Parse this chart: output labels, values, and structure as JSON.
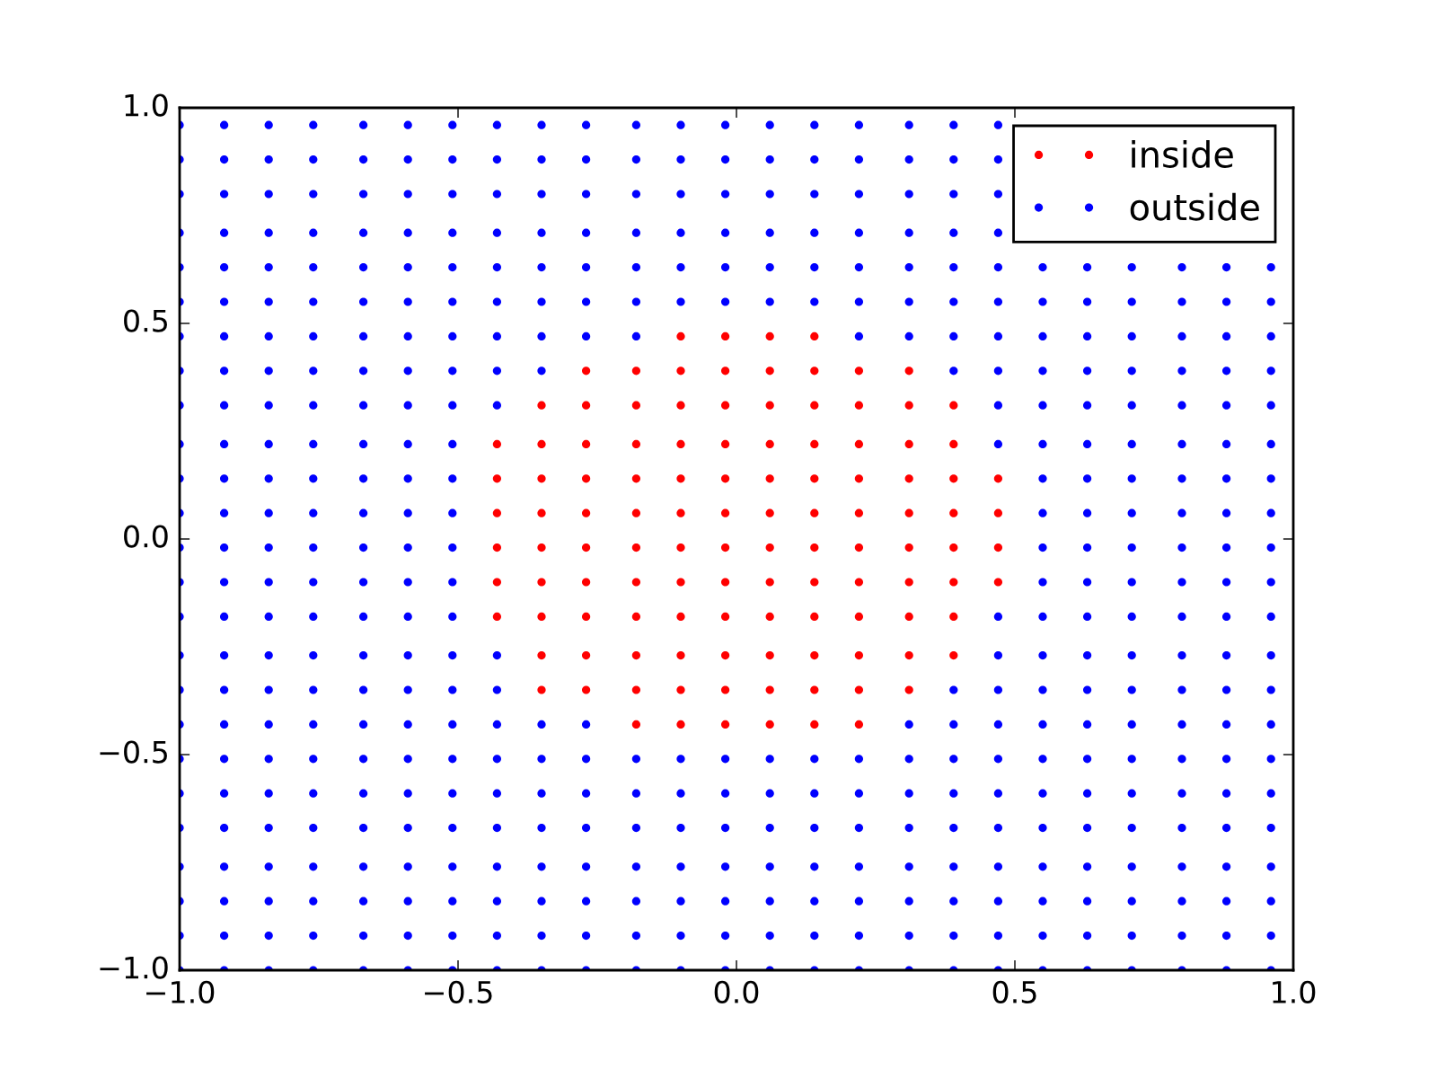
{
  "chart_data": {
    "type": "scatter",
    "xlim": [
      -1,
      1
    ],
    "ylim": [
      -1,
      1
    ],
    "xticks": [
      {
        "value": -1,
        "label": "−1.0"
      },
      {
        "value": -0.5,
        "label": "−0.5"
      },
      {
        "value": 0,
        "label": "0.0"
      },
      0.5,
      {
        "value": 1,
        "label": "1.0"
      }
    ],
    "yticks": [
      {
        "value": -1,
        "label": "−1.0"
      },
      {
        "value": -0.5,
        "label": "−0.5"
      },
      {
        "value": 0,
        "label": "0.0"
      },
      0.5,
      {
        "value": 1,
        "label": "1.0"
      }
    ],
    "legend": "top right",
    "marker": "circle",
    "series": [
      {
        "name": "inside",
        "color": "#ff0000",
        "x": [
          -0.18,
          -0.1,
          -0.02,
          0.06,
          0.14,
          0.22,
          -0.35,
          -0.27,
          -0.18,
          -0.1,
          -0.02,
          0.06,
          0.14,
          0.22,
          0.31,
          -0.35,
          -0.27,
          -0.18,
          -0.1,
          -0.02,
          0.06,
          0.14,
          0.22,
          0.31,
          0.39,
          -0.43,
          -0.35,
          -0.27,
          -0.18,
          -0.1,
          -0.02,
          0.06,
          0.14,
          0.22,
          0.31,
          0.39,
          -0.43,
          -0.35,
          -0.27,
          -0.18,
          -0.1,
          -0.02,
          0.06,
          0.14,
          0.22,
          0.31,
          0.39,
          0.47,
          -0.43,
          -0.35,
          -0.27,
          -0.18,
          -0.1,
          -0.02,
          0.06,
          0.14,
          0.22,
          0.31,
          0.39,
          0.47,
          -0.43,
          -0.35,
          -0.27,
          -0.18,
          -0.1,
          -0.02,
          0.06,
          0.14,
          0.22,
          0.31,
          0.39,
          0.47,
          -0.43,
          -0.35,
          -0.27,
          -0.18,
          -0.1,
          -0.02,
          0.06,
          0.14,
          0.22,
          0.31,
          0.39,
          0.47,
          -0.43,
          -0.35,
          -0.27,
          -0.18,
          -0.1,
          -0.02,
          0.06,
          0.14,
          0.22,
          0.31,
          0.39,
          -0.35,
          -0.27,
          -0.18,
          -0.1,
          -0.02,
          0.06,
          0.14,
          0.22,
          0.31,
          0.39,
          -0.27,
          -0.18,
          -0.1,
          -0.02,
          0.06,
          0.14,
          0.22,
          0.31,
          -0.1,
          -0.02,
          0.06,
          0.14
        ],
        "values": [
          -0.43,
          -0.43,
          -0.43,
          -0.43,
          -0.43,
          -0.43,
          -0.35,
          -0.35,
          -0.35,
          -0.35,
          -0.35,
          -0.35,
          -0.35,
          -0.35,
          -0.35,
          -0.27,
          -0.27,
          -0.27,
          -0.27,
          -0.27,
          -0.27,
          -0.27,
          -0.27,
          -0.27,
          -0.27,
          -0.18,
          -0.18,
          -0.18,
          -0.18,
          -0.18,
          -0.18,
          -0.18,
          -0.18,
          -0.18,
          -0.18,
          -0.18,
          -0.1,
          -0.1,
          -0.1,
          -0.1,
          -0.1,
          -0.1,
          -0.1,
          -0.1,
          -0.1,
          -0.1,
          -0.1,
          -0.1,
          -0.02,
          -0.02,
          -0.02,
          -0.02,
          -0.02,
          -0.02,
          -0.02,
          -0.02,
          -0.02,
          -0.02,
          -0.02,
          -0.02,
          0.06,
          0.06,
          0.06,
          0.06,
          0.06,
          0.06,
          0.06,
          0.06,
          0.06,
          0.06,
          0.06,
          0.06,
          0.14,
          0.14,
          0.14,
          0.14,
          0.14,
          0.14,
          0.14,
          0.14,
          0.14,
          0.14,
          0.14,
          0.14,
          0.22,
          0.22,
          0.22,
          0.22,
          0.22,
          0.22,
          0.22,
          0.22,
          0.22,
          0.22,
          0.22,
          0.31,
          0.31,
          0.31,
          0.31,
          0.31,
          0.31,
          0.31,
          0.31,
          0.31,
          0.31,
          0.39,
          0.39,
          0.39,
          0.39,
          0.39,
          0.39,
          0.39,
          0.39,
          0.47,
          0.47,
          0.47,
          0.47
        ]
      },
      {
        "name": "outside",
        "color": "#0000ff",
        "x": [
          -1,
          -0.92,
          -0.84,
          -0.76,
          -0.67,
          -0.59,
          -0.51,
          -0.43,
          -0.35,
          -0.27,
          -0.18,
          -0.1,
          -0.02,
          0.06,
          0.14,
          0.22,
          0.31,
          0.39,
          0.47,
          0.55,
          0.63,
          0.71,
          0.8,
          0.88,
          0.96,
          -1,
          -0.92,
          -0.84,
          -0.76,
          -0.67,
          -0.59,
          -0.51,
          -0.43,
          -0.35,
          -0.27,
          -0.18,
          -0.1,
          -0.02,
          0.06,
          0.14,
          0.22,
          0.31,
          0.39,
          0.47,
          0.55,
          0.63,
          0.71,
          0.8,
          0.88,
          0.96,
          -1,
          -0.92,
          -0.84,
          -0.76,
          -0.67,
          -0.59,
          -0.51,
          -0.43,
          -0.35,
          -0.27,
          -0.18,
          -0.1,
          -0.02,
          0.06,
          0.14,
          0.22,
          0.31,
          0.39,
          0.47,
          0.55,
          0.63,
          0.71,
          0.8,
          0.88,
          0.96,
          -1,
          -0.92,
          -0.84,
          -0.76,
          -0.67,
          -0.59,
          -0.51,
          -0.43,
          -0.35,
          -0.27,
          -0.18,
          -0.1,
          -0.02,
          0.06,
          0.14,
          0.22,
          0.31,
          0.39,
          0.47,
          0.55,
          0.63,
          0.71,
          0.8,
          0.88,
          0.96,
          -1,
          -0.92,
          -0.84,
          -0.76,
          -0.67,
          -0.59,
          -0.51,
          -0.43,
          -0.35,
          -0.27,
          -0.18,
          -0.1,
          -0.02,
          0.06,
          0.14,
          0.22,
          0.31,
          0.39,
          0.47,
          0.55,
          0.63,
          0.71,
          0.8,
          0.88,
          0.96,
          -1,
          -0.92,
          -0.84,
          -0.76,
          -0.67,
          -0.59,
          -0.51,
          -0.43,
          -0.35,
          -0.27,
          -0.18,
          -0.1,
          -0.02,
          0.06,
          0.14,
          0.22,
          0.31,
          0.39,
          0.47,
          0.55,
          0.63,
          0.71,
          0.8,
          0.88,
          0.96,
          -1,
          -0.92,
          -0.84,
          -0.76,
          -0.67,
          -0.59,
          -0.51,
          -0.43,
          -0.35,
          -0.27,
          -0.18,
          -0.1,
          -0.02,
          0.06,
          0.14,
          0.22,
          0.31,
          0.39,
          0.47,
          0.55,
          0.63,
          0.71,
          0.8,
          0.88,
          0.96,
          -1,
          -0.92,
          -0.84,
          -0.76,
          -0.67,
          -0.59,
          -0.51,
          -0.43,
          -0.35,
          -0.27,
          0.31,
          0.39,
          0.47,
          0.55,
          0.63,
          0.71,
          0.8,
          0.88,
          0.96,
          -1,
          -0.92,
          -0.84,
          -0.76,
          -0.67,
          -0.59,
          -0.51,
          -0.43,
          0.39,
          0.47,
          0.55,
          0.63,
          0.71,
          0.8,
          0.88,
          0.96,
          -1,
          -0.92,
          -0.84,
          -0.76,
          -0.67,
          -0.59,
          -0.51,
          -0.43,
          0.47,
          0.55,
          0.63,
          0.71,
          0.8,
          0.88,
          0.96,
          -1,
          -0.92,
          -0.84,
          -0.76,
          -0.67,
          -0.59,
          -0.51,
          0.47,
          0.55,
          0.63,
          0.71,
          0.8,
          0.88,
          0.96,
          -1,
          -0.92,
          -0.84,
          -0.76,
          -0.67,
          -0.59,
          -0.51,
          0.55,
          0.63,
          0.71,
          0.8,
          0.88,
          0.96,
          -1,
          -0.92,
          -0.84,
          -0.76,
          -0.67,
          -0.59,
          -0.51,
          0.55,
          0.63,
          0.71,
          0.8,
          0.88,
          0.96,
          -1,
          -0.92,
          -0.84,
          -0.76,
          -0.67,
          -0.59,
          -0.51,
          0.55,
          0.63,
          0.71,
          0.8,
          0.88,
          0.96,
          -1,
          -0.92,
          -0.84,
          -0.76,
          -0.67,
          -0.59,
          -0.51,
          0.55,
          0.63,
          0.71,
          0.8,
          0.88,
          0.96,
          -1,
          -0.92,
          -0.84,
          -0.76,
          -0.67,
          -0.59,
          -0.51,
          0.47,
          0.55,
          0.63,
          0.71,
          0.8,
          0.88,
          0.96,
          -1,
          -0.92,
          -0.84,
          -0.76,
          -0.67,
          -0.59,
          -0.51,
          -0.43,
          0.47,
          0.55,
          0.63,
          0.71,
          0.8,
          0.88,
          0.96,
          -1,
          -0.92,
          -0.84,
          -0.76,
          -0.67,
          -0.59,
          -0.51,
          -0.43,
          -0.35,
          0.39,
          0.47,
          0.55,
          0.63,
          0.71,
          0.8,
          0.88,
          0.96,
          -1,
          -0.92,
          -0.84,
          -0.76,
          -0.67,
          -0.59,
          -0.51,
          -0.43,
          -0.35,
          -0.27,
          -0.18,
          0.22,
          0.31,
          0.39,
          0.47,
          0.55,
          0.63,
          0.71,
          0.8,
          0.88,
          0.96,
          -1,
          -0.92,
          -0.84,
          -0.76,
          -0.67,
          -0.59,
          -0.51,
          -0.43,
          -0.35,
          -0.27,
          -0.18,
          -0.1,
          -0.02,
          0.06,
          0.14,
          0.22,
          0.31,
          0.39,
          0.47,
          0.55,
          0.63,
          0.71,
          0.8,
          0.88,
          0.96,
          -1,
          -0.92,
          -0.84,
          -0.76,
          -0.67,
          -0.59,
          -0.51,
          -0.43,
          -0.35,
          -0.27,
          -0.18,
          -0.1,
          -0.02,
          0.06,
          0.14,
          0.22,
          0.31,
          0.39,
          0.47,
          0.55,
          0.63,
          0.71,
          0.8,
          0.88,
          0.96,
          -1,
          -0.92,
          -0.84,
          -0.76,
          -0.67,
          -0.59,
          -0.51,
          -0.43,
          -0.35,
          -0.27,
          -0.18,
          -0.1,
          -0.02,
          0.06,
          0.14,
          0.22,
          0.31,
          0.39,
          0.47,
          -1,
          -0.92,
          -0.84,
          -0.76,
          -0.67,
          -0.59,
          -0.51,
          -0.43,
          -0.35,
          -0.27,
          -0.18,
          -0.1,
          -0.02,
          0.06,
          0.14,
          0.22,
          0.31,
          0.39,
          0.47,
          -1,
          -0.92,
          -0.84,
          -0.76,
          -0.67,
          -0.59,
          -0.51,
          -0.43,
          -0.35,
          -0.27,
          -0.18,
          -0.1,
          -0.02,
          0.06,
          0.14,
          0.22,
          0.31,
          0.39,
          0.47,
          -1,
          -0.92,
          -0.84,
          -0.76,
          -0.67,
          -0.59,
          -0.51,
          -0.43,
          -0.35,
          -0.27,
          -0.18,
          -0.1,
          -0.02,
          0.06,
          0.14,
          0.22,
          0.31,
          0.39,
          0.47
        ],
        "values": [
          -1,
          -1,
          -1,
          -1,
          -1,
          -1,
          -1,
          -1,
          -1,
          -1,
          -1,
          -1,
          -1,
          -1,
          -1,
          -1,
          -1,
          -1,
          -1,
          -1,
          -1,
          -1,
          -1,
          -1,
          -1,
          -0.92,
          -0.92,
          -0.92,
          -0.92,
          -0.92,
          -0.92,
          -0.92,
          -0.92,
          -0.92,
          -0.92,
          -0.92,
          -0.92,
          -0.92,
          -0.92,
          -0.92,
          -0.92,
          -0.92,
          -0.92,
          -0.92,
          -0.92,
          -0.92,
          -0.92,
          -0.92,
          -0.92,
          -0.92,
          -0.84,
          -0.84,
          -0.84,
          -0.84,
          -0.84,
          -0.84,
          -0.84,
          -0.84,
          -0.84,
          -0.84,
          -0.84,
          -0.84,
          -0.84,
          -0.84,
          -0.84,
          -0.84,
          -0.84,
          -0.84,
          -0.84,
          -0.84,
          -0.84,
          -0.84,
          -0.84,
          -0.84,
          -0.84,
          -0.76,
          -0.76,
          -0.76,
          -0.76,
          -0.76,
          -0.76,
          -0.76,
          -0.76,
          -0.76,
          -0.76,
          -0.76,
          -0.76,
          -0.76,
          -0.76,
          -0.76,
          -0.76,
          -0.76,
          -0.76,
          -0.76,
          -0.76,
          -0.76,
          -0.76,
          -0.76,
          -0.76,
          -0.76,
          -0.67,
          -0.67,
          -0.67,
          -0.67,
          -0.67,
          -0.67,
          -0.67,
          -0.67,
          -0.67,
          -0.67,
          -0.67,
          -0.67,
          -0.67,
          -0.67,
          -0.67,
          -0.67,
          -0.67,
          -0.67,
          -0.67,
          -0.67,
          -0.67,
          -0.67,
          -0.67,
          -0.67,
          -0.67,
          -0.59,
          -0.59,
          -0.59,
          -0.59,
          -0.59,
          -0.59,
          -0.59,
          -0.59,
          -0.59,
          -0.59,
          -0.59,
          -0.59,
          -0.59,
          -0.59,
          -0.59,
          -0.59,
          -0.59,
          -0.59,
          -0.59,
          -0.59,
          -0.59,
          -0.59,
          -0.59,
          -0.59,
          -0.59,
          -0.51,
          -0.51,
          -0.51,
          -0.51,
          -0.51,
          -0.51,
          -0.51,
          -0.51,
          -0.51,
          -0.51,
          -0.51,
          -0.51,
          -0.51,
          -0.51,
          -0.51,
          -0.51,
          -0.51,
          -0.51,
          -0.51,
          -0.51,
          -0.51,
          -0.51,
          -0.51,
          -0.51,
          -0.51,
          -0.43,
          -0.43,
          -0.43,
          -0.43,
          -0.43,
          -0.43,
          -0.43,
          -0.43,
          -0.43,
          -0.43,
          -0.43,
          -0.43,
          -0.43,
          -0.43,
          -0.43,
          -0.43,
          -0.43,
          -0.43,
          -0.43,
          -0.35,
          -0.35,
          -0.35,
          -0.35,
          -0.35,
          -0.35,
          -0.35,
          -0.35,
          -0.35,
          -0.35,
          -0.35,
          -0.35,
          -0.35,
          -0.35,
          -0.35,
          -0.35,
          -0.27,
          -0.27,
          -0.27,
          -0.27,
          -0.27,
          -0.27,
          -0.27,
          -0.27,
          -0.27,
          -0.27,
          -0.27,
          -0.27,
          -0.27,
          -0.27,
          -0.27,
          -0.18,
          -0.18,
          -0.18,
          -0.18,
          -0.18,
          -0.18,
          -0.18,
          -0.18,
          -0.18,
          -0.18,
          -0.18,
          -0.18,
          -0.18,
          -0.18,
          -0.1,
          -0.1,
          -0.1,
          -0.1,
          -0.1,
          -0.1,
          -0.1,
          -0.1,
          -0.1,
          -0.1,
          -0.1,
          -0.1,
          -0.1,
          -0.02,
          -0.02,
          -0.02,
          -0.02,
          -0.02,
          -0.02,
          -0.02,
          -0.02,
          -0.02,
          -0.02,
          -0.02,
          -0.02,
          -0.02,
          0.06,
          0.06,
          0.06,
          0.06,
          0.06,
          0.06,
          0.06,
          0.06,
          0.06,
          0.06,
          0.06,
          0.06,
          0.06,
          0.14,
          0.14,
          0.14,
          0.14,
          0.14,
          0.14,
          0.14,
          0.14,
          0.14,
          0.14,
          0.14,
          0.14,
          0.14,
          0.22,
          0.22,
          0.22,
          0.22,
          0.22,
          0.22,
          0.22,
          0.22,
          0.22,
          0.22,
          0.22,
          0.22,
          0.22,
          0.22,
          0.31,
          0.31,
          0.31,
          0.31,
          0.31,
          0.31,
          0.31,
          0.31,
          0.31,
          0.31,
          0.31,
          0.31,
          0.31,
          0.31,
          0.31,
          0.39,
          0.39,
          0.39,
          0.39,
          0.39,
          0.39,
          0.39,
          0.39,
          0.39,
          0.39,
          0.39,
          0.39,
          0.39,
          0.39,
          0.39,
          0.39,
          0.39,
          0.47,
          0.47,
          0.47,
          0.47,
          0.47,
          0.47,
          0.47,
          0.47,
          0.47,
          0.47,
          0.47,
          0.47,
          0.47,
          0.47,
          0.47,
          0.47,
          0.47,
          0.47,
          0.47,
          0.47,
          0.47,
          0.55,
          0.55,
          0.55,
          0.55,
          0.55,
          0.55,
          0.55,
          0.55,
          0.55,
          0.55,
          0.55,
          0.55,
          0.55,
          0.55,
          0.55,
          0.55,
          0.55,
          0.55,
          0.55,
          0.55,
          0.55,
          0.55,
          0.55,
          0.55,
          0.55,
          0.63,
          0.63,
          0.63,
          0.63,
          0.63,
          0.63,
          0.63,
          0.63,
          0.63,
          0.63,
          0.63,
          0.63,
          0.63,
          0.63,
          0.63,
          0.63,
          0.63,
          0.63,
          0.63,
          0.63,
          0.63,
          0.63,
          0.63,
          0.63,
          0.63,
          0.71,
          0.71,
          0.71,
          0.71,
          0.71,
          0.71,
          0.71,
          0.71,
          0.71,
          0.71,
          0.71,
          0.71,
          0.71,
          0.71,
          0.71,
          0.71,
          0.71,
          0.71,
          0.71,
          0.8,
          0.8,
          0.8,
          0.8,
          0.8,
          0.8,
          0.8,
          0.8,
          0.8,
          0.8,
          0.8,
          0.8,
          0.8,
          0.8,
          0.8,
          0.8,
          0.8,
          0.8,
          0.8,
          0.88,
          0.88,
          0.88,
          0.88,
          0.88,
          0.88,
          0.88,
          0.88,
          0.88,
          0.88,
          0.88,
          0.88,
          0.88,
          0.88,
          0.88,
          0.88,
          0.88,
          0.88,
          0.88,
          0.96,
          0.96,
          0.96,
          0.96,
          0.96,
          0.96,
          0.96,
          0.96,
          0.96,
          0.96,
          0.96,
          0.96,
          0.96,
          0.96,
          0.96,
          0.96,
          0.96,
          0.96,
          0.96
        ]
      }
    ]
  }
}
